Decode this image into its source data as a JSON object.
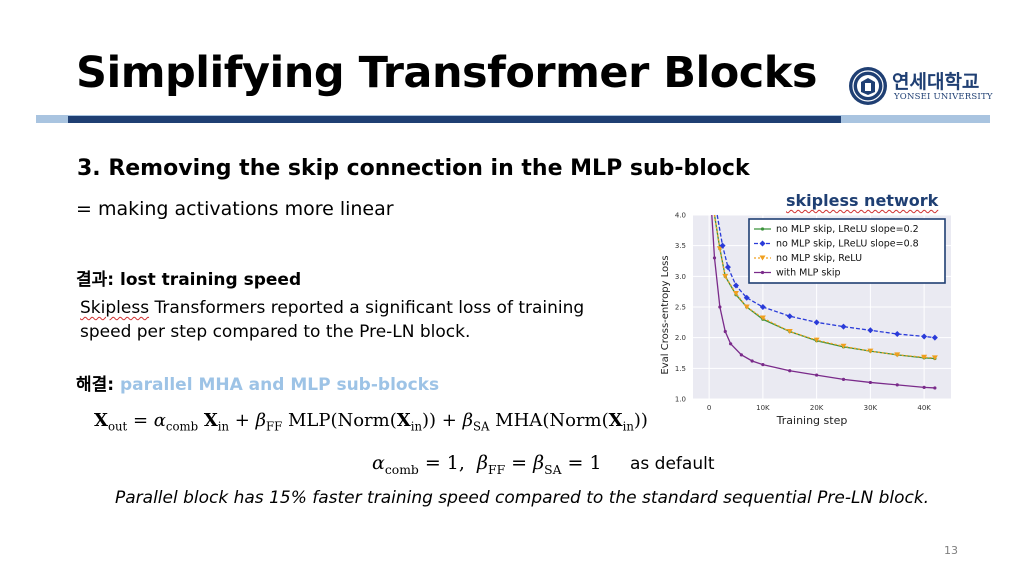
{
  "slide": {
    "title": "Simplifying Transformer Blocks",
    "logo_kr": "연세대학교",
    "logo_en": "YONSEI UNIVERSITY",
    "heading": "3. Removing the skip connection in the MLP sub-block",
    "subheading": "= making activations more linear",
    "result_label": "결과:",
    "result_text": "lost training speed",
    "body_word1": "Skipless",
    "body_rest": "Transformers reported a significant loss of training speed per step compared to the Pre-LN block.",
    "solution_label": "해결:",
    "solution_text": "parallel MHA and MLP sub-blocks",
    "eq_default_text": "as default",
    "note": "Parallel block has 15% faster training speed compared to the standard sequential Pre-LN block.",
    "page_number": "13",
    "chart_caption": "skipless network"
  },
  "equation": {
    "X": "X",
    "out": "out",
    "alpha": "α",
    "comb": "comb",
    "in": "in",
    "beta": "β",
    "FF": "FF",
    "SA": "SA",
    "MLP": "MLP",
    "MHA": "MHA",
    "Norm": "Norm"
  },
  "colors": {
    "accent_dark": "#1f3f73",
    "accent_light": "#a9c4e0",
    "solution_blue": "#9dc3e6"
  },
  "chart_data": {
    "type": "line",
    "xlabel": "Training step",
    "ylabel": "Eval Cross-entropy Loss",
    "xlim": [
      -3000,
      45000
    ],
    "ylim": [
      1.0,
      4.0
    ],
    "xticks": [
      0,
      10000,
      20000,
      30000,
      40000
    ],
    "xtick_labels": [
      "0",
      "10K",
      "20K",
      "30K",
      "40K"
    ],
    "yticks": [
      1.0,
      1.5,
      2.0,
      2.5,
      3.0,
      3.5,
      4.0
    ],
    "ytick_labels": [
      "1.0",
      "1.5",
      "2.0",
      "2.5",
      "3.0",
      "3.5",
      "4.0"
    ],
    "grid": true,
    "legend_position": "top-right",
    "series": [
      {
        "name": "no MLP skip, LReLU slope=0.2",
        "color": "#3a923a",
        "marker": "dot",
        "x": [
          1000,
          2000,
          3000,
          5000,
          7000,
          10000,
          15000,
          20000,
          25000,
          30000,
          35000,
          40000,
          42000
        ],
        "y": [
          4.0,
          3.45,
          3.0,
          2.7,
          2.5,
          2.3,
          2.1,
          1.95,
          1.85,
          1.78,
          1.72,
          1.67,
          1.66
        ]
      },
      {
        "name": "no MLP skip, LReLU slope=0.8",
        "color": "#2a3bd9",
        "marker": "diamond",
        "x": [
          1500,
          2500,
          3500,
          5000,
          7000,
          10000,
          15000,
          20000,
          25000,
          30000,
          35000,
          40000,
          42000
        ],
        "y": [
          4.0,
          3.5,
          3.15,
          2.85,
          2.65,
          2.5,
          2.35,
          2.25,
          2.18,
          2.12,
          2.06,
          2.02,
          2.0
        ]
      },
      {
        "name": "no MLP skip, ReLU",
        "color": "#f0a020",
        "marker": "triangle",
        "x": [
          1000,
          2000,
          3000,
          5000,
          7000,
          10000,
          15000,
          20000,
          25000,
          30000,
          35000,
          40000,
          42000
        ],
        "y": [
          4.0,
          3.45,
          3.0,
          2.72,
          2.5,
          2.32,
          2.1,
          1.96,
          1.86,
          1.78,
          1.72,
          1.68,
          1.67
        ]
      },
      {
        "name": "with MLP skip",
        "color": "#7a2a8a",
        "marker": "dot",
        "x": [
          500,
          1000,
          2000,
          3000,
          4000,
          6000,
          8000,
          10000,
          15000,
          20000,
          25000,
          30000,
          35000,
          40000,
          42000
        ],
        "y": [
          4.0,
          3.3,
          2.5,
          2.1,
          1.9,
          1.72,
          1.62,
          1.56,
          1.46,
          1.39,
          1.32,
          1.27,
          1.23,
          1.19,
          1.18
        ]
      }
    ]
  }
}
